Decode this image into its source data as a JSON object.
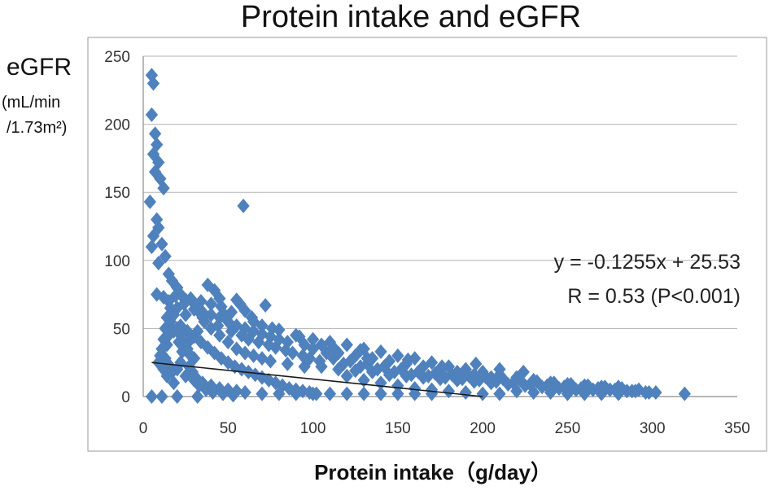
{
  "chart_data": {
    "type": "scatter",
    "title": "Protein intake and eGFR",
    "ylabel": "eGFR",
    "ylabel_unit_1": "(mL/min",
    "ylabel_unit_2": "/1.73m²)",
    "xlabel": "Protein intake（g/day）",
    "xlim": [
      0,
      350
    ],
    "ylim": [
      0,
      250
    ],
    "xticks": [
      0,
      50,
      100,
      150,
      200,
      250,
      300,
      350
    ],
    "yticks": [
      0,
      50,
      100,
      150,
      200,
      250
    ],
    "grid": true,
    "marker": "diamond",
    "colors": {
      "marker": "#4f81bd",
      "trendline": "#1a1a1a"
    },
    "trendline": {
      "x": [
        5,
        200
      ],
      "y": [
        25,
        0
      ]
    },
    "annotations": [
      "y = -0.1255x + 25.53",
      "R = 0.53 (P<0.001)"
    ],
    "points": [
      [
        5,
        236
      ],
      [
        6,
        230
      ],
      [
        5,
        207
      ],
      [
        7,
        193
      ],
      [
        8,
        185
      ],
      [
        6,
        178
      ],
      [
        9,
        172
      ],
      [
        7,
        165
      ],
      [
        10,
        160
      ],
      [
        12,
        153
      ],
      [
        4,
        143
      ],
      [
        8,
        130
      ],
      [
        9,
        124
      ],
      [
        6,
        118
      ],
      [
        11,
        112
      ],
      [
        5,
        110
      ],
      [
        13,
        103
      ],
      [
        9,
        98
      ],
      [
        59,
        140
      ],
      [
        15,
        90
      ],
      [
        17,
        85
      ],
      [
        20,
        80
      ],
      [
        22,
        75
      ],
      [
        25,
        71
      ],
      [
        8,
        75
      ],
      [
        12,
        73
      ],
      [
        38,
        82
      ],
      [
        55,
        71
      ],
      [
        57,
        68
      ],
      [
        72,
        67
      ],
      [
        42,
        78
      ],
      [
        45,
        72
      ],
      [
        60,
        63
      ],
      [
        30,
        68
      ],
      [
        33,
        62
      ],
      [
        35,
        58
      ],
      [
        48,
        60
      ],
      [
        65,
        55
      ],
      [
        70,
        52
      ],
      [
        80,
        49
      ],
      [
        90,
        45
      ],
      [
        100,
        42
      ],
      [
        110,
        40
      ],
      [
        120,
        38
      ],
      [
        130,
        35
      ],
      [
        140,
        33
      ],
      [
        150,
        30
      ],
      [
        160,
        28
      ],
      [
        170,
        25
      ],
      [
        180,
        22
      ],
      [
        190,
        20
      ],
      [
        200,
        18
      ],
      [
        210,
        16
      ],
      [
        220,
        14
      ],
      [
        230,
        12
      ],
      [
        240,
        10
      ],
      [
        250,
        9
      ],
      [
        260,
        8
      ],
      [
        270,
        7
      ],
      [
        280,
        7
      ],
      [
        290,
        4
      ],
      [
        298,
        3
      ],
      [
        302,
        3
      ],
      [
        319,
        2
      ],
      [
        18,
        60
      ],
      [
        20,
        50
      ],
      [
        22,
        45
      ],
      [
        24,
        40
      ],
      [
        26,
        35
      ],
      [
        28,
        30
      ],
      [
        30,
        28
      ],
      [
        40,
        50
      ],
      [
        45,
        45
      ],
      [
        50,
        40
      ],
      [
        55,
        35
      ],
      [
        60,
        32
      ],
      [
        65,
        30
      ],
      [
        70,
        28
      ],
      [
        75,
        26
      ],
      [
        85,
        24
      ],
      [
        95,
        22
      ],
      [
        105,
        22
      ],
      [
        115,
        20
      ],
      [
        125,
        19
      ],
      [
        135,
        18
      ],
      [
        145,
        16
      ],
      [
        155,
        15
      ],
      [
        165,
        14
      ],
      [
        175,
        13
      ],
      [
        185,
        12
      ],
      [
        195,
        11
      ],
      [
        205,
        10
      ],
      [
        215,
        9
      ],
      [
        225,
        8
      ],
      [
        235,
        7
      ],
      [
        245,
        6
      ],
      [
        255,
        5
      ],
      [
        265,
        5
      ],
      [
        275,
        5
      ],
      [
        285,
        4
      ],
      [
        15,
        70
      ],
      [
        16,
        65
      ],
      [
        14,
        58
      ],
      [
        13,
        50
      ],
      [
        12,
        42
      ],
      [
        11,
        35
      ],
      [
        10,
        30
      ],
      [
        9,
        25
      ],
      [
        12,
        20
      ],
      [
        14,
        15
      ],
      [
        20,
        20
      ],
      [
        25,
        15
      ],
      [
        30,
        12
      ],
      [
        35,
        10
      ],
      [
        40,
        8
      ],
      [
        45,
        6
      ],
      [
        50,
        5
      ],
      [
        55,
        4
      ],
      [
        60,
        3
      ],
      [
        70,
        2
      ],
      [
        80,
        2
      ],
      [
        90,
        2
      ],
      [
        100,
        2
      ],
      [
        110,
        2
      ],
      [
        120,
        2
      ],
      [
        130,
        2
      ],
      [
        140,
        2
      ],
      [
        150,
        2
      ],
      [
        160,
        2
      ],
      [
        170,
        2
      ],
      [
        5,
        0
      ],
      [
        11,
        0
      ],
      [
        20,
        0
      ],
      [
        32,
        0
      ],
      [
        18,
        10
      ],
      [
        22,
        25
      ],
      [
        28,
        42
      ],
      [
        32,
        48
      ],
      [
        36,
        55
      ],
      [
        44,
        52
      ],
      [
        52,
        48
      ],
      [
        58,
        45
      ],
      [
        62,
        42
      ],
      [
        68,
        40
      ],
      [
        74,
        38
      ],
      [
        78,
        36
      ],
      [
        84,
        34
      ],
      [
        88,
        32
      ],
      [
        94,
        30
      ],
      [
        98,
        28
      ],
      [
        104,
        26
      ],
      [
        108,
        32
      ],
      [
        112,
        28
      ],
      [
        118,
        24
      ],
      [
        122,
        26
      ],
      [
        128,
        22
      ],
      [
        132,
        24
      ],
      [
        138,
        20
      ],
      [
        142,
        22
      ],
      [
        148,
        18
      ],
      [
        152,
        20
      ],
      [
        158,
        16
      ],
      [
        162,
        18
      ],
      [
        168,
        15
      ],
      [
        172,
        17
      ],
      [
        178,
        14
      ],
      [
        182,
        16
      ],
      [
        188,
        13
      ],
      [
        192,
        15
      ],
      [
        198,
        12
      ],
      [
        202,
        14
      ],
      [
        208,
        11
      ],
      [
        212,
        13
      ],
      [
        218,
        10
      ],
      [
        222,
        12
      ],
      [
        228,
        9
      ],
      [
        232,
        11
      ],
      [
        238,
        8
      ],
      [
        242,
        10
      ],
      [
        248,
        7
      ],
      [
        252,
        9
      ],
      [
        258,
        6
      ],
      [
        262,
        8
      ],
      [
        268,
        6
      ],
      [
        272,
        7
      ],
      [
        278,
        5
      ],
      [
        282,
        6
      ],
      [
        288,
        4
      ],
      [
        292,
        5
      ],
      [
        296,
        3
      ],
      [
        100,
        35
      ],
      [
        105,
        38
      ],
      [
        95,
        38
      ],
      [
        85,
        40
      ],
      [
        80,
        42
      ],
      [
        75,
        44
      ],
      [
        70,
        46
      ],
      [
        65,
        48
      ],
      [
        60,
        50
      ],
      [
        55,
        52
      ],
      [
        50,
        55
      ],
      [
        45,
        58
      ],
      [
        40,
        60
      ],
      [
        35,
        62
      ],
      [
        30,
        64
      ],
      [
        25,
        60
      ],
      [
        20,
        65
      ],
      [
        16,
        55
      ],
      [
        18,
        48
      ],
      [
        22,
        52
      ],
      [
        26,
        48
      ],
      [
        30,
        44
      ],
      [
        34,
        40
      ],
      [
        38,
        36
      ],
      [
        42,
        32
      ],
      [
        46,
        28
      ],
      [
        50,
        25
      ],
      [
        54,
        22
      ],
      [
        58,
        20
      ],
      [
        62,
        18
      ],
      [
        66,
        16
      ],
      [
        70,
        14
      ],
      [
        74,
        12
      ],
      [
        78,
        10
      ],
      [
        82,
        8
      ],
      [
        86,
        6
      ],
      [
        90,
        5
      ],
      [
        94,
        4
      ],
      [
        98,
        3
      ],
      [
        102,
        2
      ],
      [
        115,
        32
      ],
      [
        125,
        30
      ],
      [
        135,
        28
      ],
      [
        145,
        26
      ],
      [
        155,
        24
      ],
      [
        165,
        22
      ],
      [
        175,
        20
      ],
      [
        185,
        18
      ],
      [
        195,
        16
      ],
      [
        205,
        14
      ],
      [
        120,
        15
      ],
      [
        130,
        12
      ],
      [
        140,
        10
      ],
      [
        150,
        8
      ],
      [
        160,
        6
      ],
      [
        170,
        5
      ],
      [
        180,
        4
      ],
      [
        190,
        3
      ],
      [
        200,
        2
      ],
      [
        210,
        2
      ],
      [
        220,
        4
      ],
      [
        230,
        3
      ],
      [
        240,
        3
      ],
      [
        250,
        2
      ],
      [
        260,
        2
      ],
      [
        270,
        2
      ],
      [
        280,
        2
      ],
      [
        132,
        28
      ],
      [
        156,
        27
      ],
      [
        176,
        22
      ],
      [
        210,
        20
      ],
      [
        224,
        18
      ],
      [
        196,
        24
      ],
      [
        128,
        34
      ],
      [
        112,
        36
      ],
      [
        92,
        44
      ],
      [
        76,
        50
      ],
      [
        64,
        58
      ],
      [
        52,
        62
      ],
      [
        46,
        66
      ],
      [
        40,
        68
      ],
      [
        34,
        70
      ],
      [
        28,
        72
      ],
      [
        24,
        68
      ],
      [
        19,
        74
      ],
      [
        21,
        40
      ],
      [
        23,
        33
      ],
      [
        27,
        22
      ],
      [
        29,
        18
      ],
      [
        31,
        14
      ],
      [
        33,
        8
      ],
      [
        37,
        5
      ],
      [
        41,
        3
      ],
      [
        47,
        2
      ],
      [
        53,
        1
      ],
      [
        15,
        45
      ],
      [
        14,
        38
      ],
      [
        13,
        28
      ],
      [
        16,
        22
      ],
      [
        17,
        18
      ]
    ]
  }
}
